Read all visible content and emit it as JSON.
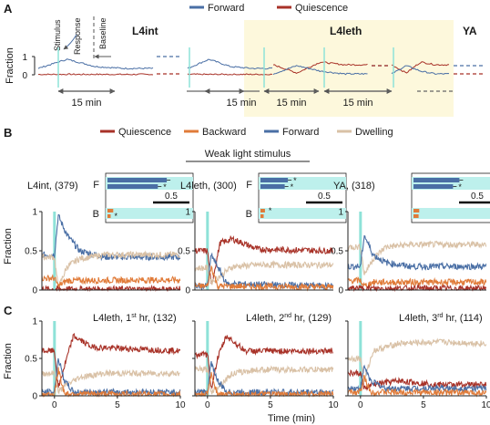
{
  "panel_labels": {
    "a": "A",
    "b": "B",
    "c": "C"
  },
  "colors": {
    "forward": "#4a6fa5",
    "quiescence": "#a83228",
    "backward": "#e07b39",
    "dwelling": "#d9c1a6",
    "stimulus": "#8ee2d8",
    "leth_bg": "#fdf8dc",
    "inset_bar": "#4a6fa5",
    "inset_bg": "#bdf0ec"
  },
  "panel_a": {
    "legend": [
      {
        "key": "forward",
        "label": "Forward"
      },
      {
        "key": "quiescence",
        "label": "Quiescence"
      }
    ],
    "stage_labels": {
      "l4int": "L4int",
      "l4leth": "L4leth",
      "ya": "YA"
    },
    "annotations": {
      "stimulus": "Stimulus",
      "response": "Response",
      "baseline": "Baseline"
    },
    "ylabel": "Fraction",
    "yticks": [
      "1",
      "0"
    ],
    "interval_label": "15 min",
    "intervals": [
      "15 min",
      "15 min",
      "15 min"
    ]
  },
  "panel_b": {
    "legend": [
      {
        "key": "quiescence",
        "label": "Quiescence"
      },
      {
        "key": "backward",
        "label": "Backward"
      },
      {
        "key": "forward",
        "label": "Forward"
      },
      {
        "key": "dwelling",
        "label": "Dwelling"
      }
    ],
    "subtitle": "Weak light stimulus",
    "ylabel": "Fraction",
    "yticks": [
      "1",
      "0.5",
      "0"
    ],
    "inset_scale": "0.5",
    "inset_row_labels": {
      "f": "F",
      "b": "B"
    },
    "star": "*",
    "plots": [
      {
        "title": "L4int, (379)",
        "inset": {
          "f": [
            0.93,
            0.79
          ],
          "b": [
            0.09,
            0.05
          ],
          "f_stars": [
            false,
            true
          ],
          "b_stars": [
            false,
            true
          ]
        }
      },
      {
        "title": "L4leth, (300)",
        "inset": {
          "f": [
            0.43,
            0.38
          ],
          "b": [
            0.07,
            0.05
          ],
          "f_stars": [
            true,
            true
          ],
          "b_stars": [
            true,
            false
          ]
        }
      },
      {
        "title": "YA, (318)",
        "inset": {
          "f": [
            0.72,
            0.62
          ],
          "b": [
            0.09,
            0.08
          ],
          "f_stars": [
            false,
            true
          ],
          "b_stars": [
            false,
            false
          ]
        }
      }
    ]
  },
  "panel_c": {
    "ylabel": "Fraction",
    "yticks": [
      "1",
      "0.5",
      "0"
    ],
    "xticks": [
      "0",
      "5",
      "10"
    ],
    "xlabel": "Time (min)",
    "plots": [
      {
        "title_prefix": "L4leth, 1",
        "sup": "st",
        "title_suffix": " hr, (132)"
      },
      {
        "title_prefix": "L4leth, 2",
        "sup": "nd",
        "title_suffix": " hr, (129)"
      },
      {
        "title_prefix": "L4leth, 3",
        "sup": "rd",
        "title_suffix": " hr, (114)"
      }
    ]
  },
  "chart_data": [
    {
      "type": "line",
      "panel": "A",
      "ylim": [
        0,
        1
      ],
      "series": [
        {
          "name": "Forward",
          "stage": "L4int",
          "profile": [
            0.35,
            0.85,
            0.45,
            0.35,
            0.35
          ]
        },
        {
          "name": "Quiescence",
          "stage": "L4int",
          "profile": [
            0.02,
            0.02,
            0.02,
            0.02,
            0.02
          ]
        },
        {
          "name": "Forward",
          "stage": "L4leth",
          "profile": [
            0.05,
            0.5,
            0.2,
            0.05,
            0.05
          ]
        },
        {
          "name": "Quiescence",
          "stage": "L4leth",
          "profile": [
            0.55,
            0.1,
            0.7,
            0.55,
            0.55
          ]
        }
      ]
    },
    {
      "type": "line",
      "panel": "B",
      "xlim": [
        -1,
        10
      ],
      "ylim": [
        0,
        1
      ],
      "plots": [
        {
          "name": "L4int",
          "series": [
            {
              "name": "Forward",
              "x": [
                -1,
                0,
                0.3,
                1,
                2,
                4,
                10
              ],
              "y": [
                0.45,
                0.45,
                0.95,
                0.7,
                0.5,
                0.42,
                0.42
              ]
            },
            {
              "name": "Dwelling",
              "x": [
                -1,
                0,
                0.3,
                1,
                2,
                4,
                10
              ],
              "y": [
                0.42,
                0.42,
                0.02,
                0.3,
                0.4,
                0.45,
                0.45
              ]
            },
            {
              "name": "Backward",
              "x": [
                -1,
                0,
                0.3,
                1,
                10
              ],
              "y": [
                0.15,
                0.15,
                0.05,
                0.12,
                0.13
              ]
            },
            {
              "name": "Quiescence",
              "x": [
                -1,
                10
              ],
              "y": [
                0.01,
                0.01
              ]
            }
          ]
        },
        {
          "name": "L4leth",
          "series": [
            {
              "name": "Quiescence",
              "x": [
                -1,
                0,
                0.3,
                1,
                2,
                4,
                10
              ],
              "y": [
                0.5,
                0.5,
                0.05,
                0.6,
                0.65,
                0.52,
                0.5
              ]
            },
            {
              "name": "Dwelling",
              "x": [
                -1,
                0,
                0.3,
                1,
                2,
                4,
                10
              ],
              "y": [
                0.28,
                0.28,
                0.1,
                0.18,
                0.3,
                0.32,
                0.32
              ]
            },
            {
              "name": "Forward",
              "x": [
                -1,
                0,
                0.3,
                0.8,
                1.5,
                10
              ],
              "y": [
                0.05,
                0.05,
                0.45,
                0.3,
                0.08,
                0.05
              ]
            },
            {
              "name": "Backward",
              "x": [
                -1,
                0,
                0.3,
                0.8,
                10
              ],
              "y": [
                0.05,
                0.05,
                0.3,
                0.05,
                0.04
              ]
            }
          ]
        },
        {
          "name": "YA",
          "series": [
            {
              "name": "Dwelling",
              "x": [
                -1,
                0,
                0.3,
                1,
                2,
                4,
                10
              ],
              "y": [
                0.55,
                0.55,
                0.2,
                0.4,
                0.55,
                0.58,
                0.58
              ]
            },
            {
              "name": "Forward",
              "x": [
                -1,
                0,
                0.3,
                1,
                2,
                4,
                10
              ],
              "y": [
                0.3,
                0.3,
                0.7,
                0.45,
                0.35,
                0.3,
                0.3
              ]
            },
            {
              "name": "Backward",
              "x": [
                -1,
                0,
                0.3,
                1,
                10
              ],
              "y": [
                0.12,
                0.12,
                0.05,
                0.1,
                0.1
              ]
            },
            {
              "name": "Quiescence",
              "x": [
                -1,
                10
              ],
              "y": [
                0.02,
                0.02
              ]
            }
          ]
        }
      ]
    },
    {
      "type": "line",
      "panel": "C",
      "xlim": [
        -1,
        10
      ],
      "ylim": [
        0,
        1
      ],
      "plots": [
        {
          "name": "1st hr",
          "series": [
            {
              "name": "Quiescence",
              "x": [
                -1,
                0,
                0.3,
                0.8,
                1.5,
                3,
                10
              ],
              "y": [
                0.6,
                0.6,
                0.1,
                0.4,
                0.8,
                0.65,
                0.6
              ]
            },
            {
              "name": "Dwelling",
              "x": [
                -1,
                0,
                0.3,
                1,
                2,
                4,
                10
              ],
              "y": [
                0.3,
                0.3,
                0.05,
                0.15,
                0.25,
                0.3,
                0.3
              ]
            },
            {
              "name": "Forward",
              "x": [
                -1,
                0,
                0.3,
                0.8,
                1.5,
                10
              ],
              "y": [
                0.05,
                0.05,
                0.5,
                0.2,
                0.05,
                0.05
              ]
            },
            {
              "name": "Backward",
              "x": [
                -1,
                0,
                0.3,
                0.8,
                10
              ],
              "y": [
                0.02,
                0.02,
                0.35,
                0.03,
                0.02
              ]
            }
          ]
        },
        {
          "name": "2nd hr",
          "series": [
            {
              "name": "Quiescence",
              "x": [
                -1,
                0,
                0.3,
                0.8,
                1.5,
                3,
                10
              ],
              "y": [
                0.55,
                0.55,
                0.1,
                0.5,
                0.8,
                0.6,
                0.6
              ]
            },
            {
              "name": "Dwelling",
              "x": [
                -1,
                0,
                0.3,
                1,
                2,
                4,
                10
              ],
              "y": [
                0.35,
                0.35,
                0.05,
                0.15,
                0.3,
                0.35,
                0.35
              ]
            },
            {
              "name": "Forward",
              "x": [
                -1,
                0,
                0.3,
                0.8,
                1.5,
                10
              ],
              "y": [
                0.05,
                0.05,
                0.45,
                0.2,
                0.05,
                0.05
              ]
            },
            {
              "name": "Backward",
              "x": [
                -1,
                0,
                0.3,
                0.8,
                10
              ],
              "y": [
                0.02,
                0.02,
                0.3,
                0.02,
                0.02
              ]
            }
          ]
        },
        {
          "name": "3rd hr",
          "series": [
            {
              "name": "Dwelling",
              "x": [
                -1,
                0,
                0.3,
                1,
                3,
                6,
                10
              ],
              "y": [
                0.5,
                0.5,
                0.2,
                0.6,
                0.7,
                0.72,
                0.7
              ]
            },
            {
              "name": "Quiescence",
              "x": [
                -1,
                0,
                0.3,
                1,
                3,
                6,
                10
              ],
              "y": [
                0.3,
                0.3,
                0.1,
                0.15,
                0.2,
                0.15,
                0.15
              ]
            },
            {
              "name": "Forward",
              "x": [
                -1,
                0,
                0.3,
                0.8,
                2,
                10
              ],
              "y": [
                0.1,
                0.1,
                0.4,
                0.2,
                0.1,
                0.1
              ]
            },
            {
              "name": "Backward",
              "x": [
                -1,
                0,
                0.3,
                0.8,
                10
              ],
              "y": [
                0.05,
                0.05,
                0.25,
                0.05,
                0.04
              ]
            }
          ]
        }
      ]
    }
  ]
}
